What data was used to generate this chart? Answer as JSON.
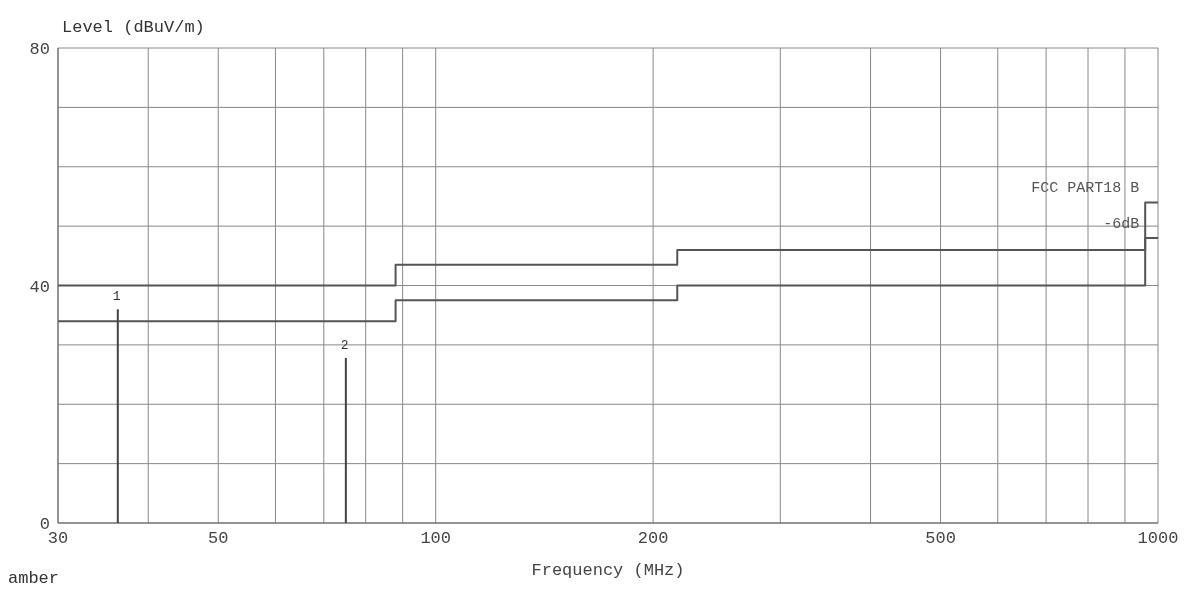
{
  "chart_data": {
    "type": "step",
    "ylabel": "Level (dBuV/m)",
    "xlabel": "Frequency (MHz)",
    "log": "x",
    "xlim": [
      30,
      1000
    ],
    "ylim": [
      0,
      80
    ],
    "xticks": [
      30,
      {
        "value": 40,
        "label": null
      },
      50,
      {
        "value": 60,
        "label": null
      },
      {
        "value": 70,
        "label": null
      },
      {
        "value": 80,
        "label": null
      },
      {
        "value": 90,
        "label": null
      },
      100,
      200,
      {
        "value": 300,
        "label": null
      },
      {
        "value": 400,
        "label": null
      },
      500,
      {
        "value": 600,
        "label": null
      },
      {
        "value": 700,
        "label": null
      },
      {
        "value": 800,
        "label": null
      },
      {
        "value": 900,
        "label": null
      },
      1000
    ],
    "yticks": [
      0,
      {
        "value": 10,
        "label": null
      },
      {
        "value": 20,
        "label": null
      },
      {
        "value": 30,
        "label": null
      },
      40,
      {
        "value": 50,
        "label": null
      },
      {
        "value": 60,
        "label": null
      },
      {
        "value": 70,
        "label": null
      },
      80
    ],
    "grid": true,
    "series": [
      {
        "name": "FCC PART18 B",
        "color": "#555555",
        "x": [
          30,
          88,
          216,
          960,
          1000
        ],
        "values": [
          40,
          43.5,
          46,
          54,
          54
        ]
      },
      {
        "name": "-6dB",
        "color": "#555555",
        "x": [
          30,
          88,
          216,
          960,
          1000
        ],
        "values": [
          34,
          37.5,
          40,
          48,
          48
        ]
      },
      {
        "type": "bar",
        "color": "#444444",
        "x": [
          36.3,
          75.1
        ],
        "values": [
          36,
          27.8
        ]
      }
    ],
    "annotations": [
      {
        "text": "1",
        "x": 36.3,
        "y": 36
      },
      {
        "text": "2",
        "x": 75.1,
        "y": 27.8
      },
      "amber"
    ]
  }
}
